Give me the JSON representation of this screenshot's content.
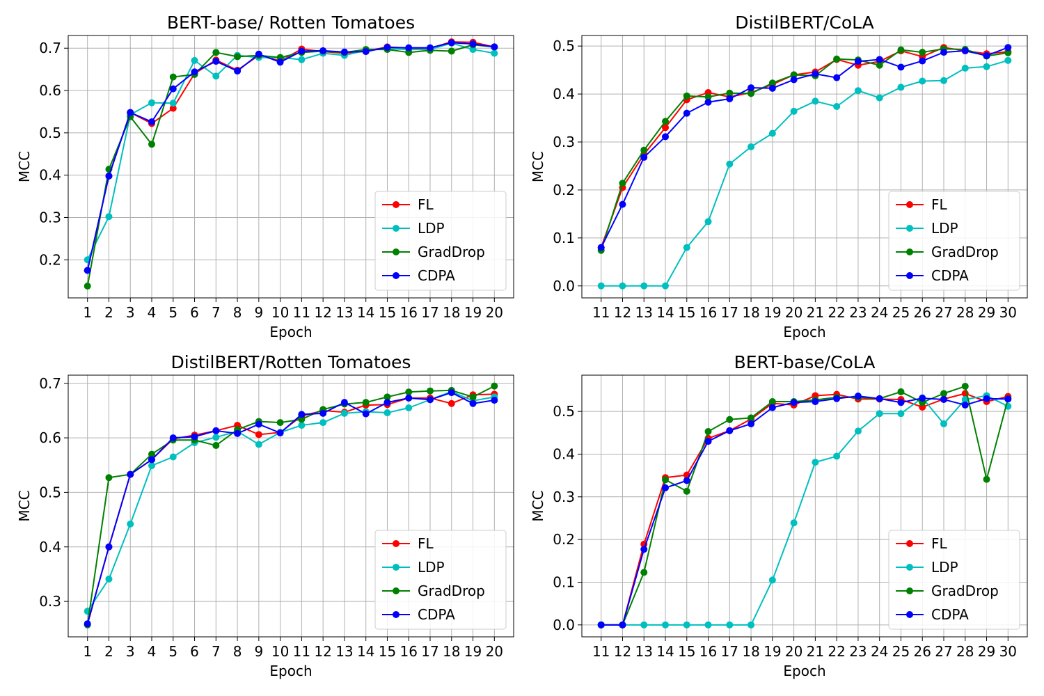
{
  "chart_data": [
    {
      "type": "line",
      "title": "BERT-base/ Rotten Tomatoes",
      "xlabel": "Epoch",
      "ylabel": "MCC",
      "x": [
        1,
        2,
        3,
        4,
        5,
        6,
        7,
        8,
        9,
        10,
        11,
        12,
        13,
        14,
        15,
        16,
        17,
        18,
        19,
        20
      ],
      "xlim": [
        0.1,
        20.9
      ],
      "ylim": [
        0.11,
        0.73
      ],
      "yticks": [
        0.2,
        0.3,
        0.4,
        0.5,
        0.6,
        0.7
      ],
      "ytick_labels": [
        "0.2",
        "0.3",
        "0.4",
        "0.5",
        "0.6",
        "0.7"
      ],
      "grid": true,
      "legend": "lower-right",
      "series": [
        {
          "name": "FL",
          "color": "#ff0000",
          "values": [
            0.175,
            0.398,
            0.548,
            0.522,
            0.558,
            0.64,
            0.672,
            0.648,
            0.683,
            0.67,
            0.698,
            0.692,
            0.688,
            0.693,
            0.703,
            0.7,
            0.7,
            0.715,
            0.714,
            0.703
          ]
        },
        {
          "name": "LDP",
          "color": "#00bfbf",
          "values": [
            0.2,
            0.302,
            0.543,
            0.571,
            0.57,
            0.671,
            0.634,
            0.683,
            0.678,
            0.678,
            0.673,
            0.688,
            0.683,
            0.695,
            0.699,
            0.697,
            0.697,
            0.712,
            0.697,
            0.688
          ]
        },
        {
          "name": "GradDrop",
          "color": "#008000",
          "values": [
            0.138,
            0.414,
            0.538,
            0.473,
            0.632,
            0.638,
            0.69,
            0.68,
            0.683,
            0.678,
            0.69,
            0.693,
            0.69,
            0.697,
            0.697,
            0.69,
            0.695,
            0.693,
            0.708,
            0.703
          ]
        },
        {
          "name": "CDPA",
          "color": "#0000ff",
          "values": [
            0.175,
            0.398,
            0.548,
            0.526,
            0.604,
            0.644,
            0.669,
            0.646,
            0.686,
            0.667,
            0.693,
            0.694,
            0.691,
            0.692,
            0.702,
            0.701,
            0.701,
            0.713,
            0.71,
            0.703
          ]
        }
      ]
    },
    {
      "type": "line",
      "title": "DistilBERT/CoLA",
      "xlabel": "Epoch",
      "ylabel": "MCC",
      "x": [
        11,
        12,
        13,
        14,
        15,
        16,
        17,
        18,
        19,
        20,
        21,
        22,
        23,
        24,
        25,
        26,
        27,
        28,
        29,
        30
      ],
      "xlim": [
        10.1,
        30.9
      ],
      "ylim": [
        -0.025,
        0.522
      ],
      "yticks": [
        0.0,
        0.1,
        0.2,
        0.3,
        0.4,
        0.5
      ],
      "ytick_labels": [
        "0.0",
        "0.1",
        "0.2",
        "0.3",
        "0.4",
        "0.5"
      ],
      "grid": true,
      "legend": "lower-right",
      "series": [
        {
          "name": "FL",
          "color": "#ff0000",
          "values": [
            0.08,
            0.205,
            0.274,
            0.33,
            0.388,
            0.403,
            0.394,
            0.403,
            0.42,
            0.44,
            0.446,
            0.472,
            0.46,
            0.468,
            0.49,
            0.478,
            0.497,
            0.49,
            0.484,
            0.488
          ]
        },
        {
          "name": "LDP",
          "color": "#00bfbf",
          "values": [
            0.0,
            0.0,
            0.0,
            0.0,
            0.08,
            0.134,
            0.254,
            0.29,
            0.318,
            0.364,
            0.385,
            0.374,
            0.407,
            0.392,
            0.414,
            0.427,
            0.428,
            0.454,
            0.457,
            0.47
          ]
        },
        {
          "name": "GradDrop",
          "color": "#008000",
          "values": [
            0.074,
            0.214,
            0.283,
            0.343,
            0.396,
            0.394,
            0.402,
            0.401,
            0.423,
            0.44,
            0.438,
            0.473,
            0.471,
            0.46,
            0.492,
            0.487,
            0.494,
            0.493,
            0.479,
            0.486
          ]
        },
        {
          "name": "CDPA",
          "color": "#0000ff",
          "values": [
            0.08,
            0.17,
            0.268,
            0.311,
            0.36,
            0.383,
            0.39,
            0.413,
            0.412,
            0.43,
            0.442,
            0.434,
            0.468,
            0.472,
            0.456,
            0.469,
            0.487,
            0.49,
            0.48,
            0.497
          ]
        }
      ]
    },
    {
      "type": "line",
      "title": "DistilBERT/Rotten Tomatoes",
      "xlabel": "Epoch",
      "ylabel": "MCC",
      "x": [
        1,
        2,
        3,
        4,
        5,
        6,
        7,
        8,
        9,
        10,
        11,
        12,
        13,
        14,
        15,
        16,
        17,
        18,
        19,
        20
      ],
      "xlim": [
        0.1,
        20.9
      ],
      "ylim": [
        0.235,
        0.715
      ],
      "yticks": [
        0.3,
        0.4,
        0.5,
        0.6,
        0.7
      ],
      "ytick_labels": [
        "0.3",
        "0.4",
        "0.5",
        "0.6",
        "0.7"
      ],
      "grid": true,
      "legend": "lower-right",
      "series": [
        {
          "name": "FL",
          "color": "#ff0000",
          "values": [
            0.258,
            0.4,
            0.533,
            0.56,
            0.598,
            0.605,
            0.613,
            0.623,
            0.606,
            0.61,
            0.64,
            0.65,
            0.647,
            0.66,
            0.661,
            0.673,
            0.673,
            0.663,
            0.679,
            0.68
          ]
        },
        {
          "name": "LDP",
          "color": "#00bfbf",
          "values": [
            0.282,
            0.341,
            0.442,
            0.549,
            0.565,
            0.591,
            0.601,
            0.612,
            0.588,
            0.61,
            0.623,
            0.628,
            0.645,
            0.648,
            0.646,
            0.655,
            0.67,
            0.685,
            0.668,
            0.675
          ]
        },
        {
          "name": "GradDrop",
          "color": "#008000",
          "values": [
            0.257,
            0.527,
            0.533,
            0.57,
            0.596,
            0.596,
            0.586,
            0.615,
            0.63,
            0.628,
            0.634,
            0.652,
            0.662,
            0.665,
            0.675,
            0.684,
            0.686,
            0.687,
            0.675,
            0.695
          ]
        },
        {
          "name": "CDPA",
          "color": "#0000ff",
          "values": [
            0.259,
            0.4,
            0.533,
            0.56,
            0.6,
            0.602,
            0.613,
            0.608,
            0.625,
            0.609,
            0.643,
            0.645,
            0.665,
            0.644,
            0.665,
            0.673,
            0.67,
            0.683,
            0.663,
            0.669
          ]
        }
      ]
    },
    {
      "type": "line",
      "title": "BERT-base/CoLA",
      "xlabel": "Epoch",
      "ylabel": "MCC",
      "x": [
        11,
        12,
        13,
        14,
        15,
        16,
        17,
        18,
        19,
        20,
        21,
        22,
        23,
        24,
        25,
        26,
        27,
        28,
        29,
        30
      ],
      "xlim": [
        10.1,
        30.9
      ],
      "ylim": [
        -0.028,
        0.585
      ],
      "yticks": [
        0.0,
        0.1,
        0.2,
        0.3,
        0.4,
        0.5
      ],
      "ytick_labels": [
        "0.0",
        "0.1",
        "0.2",
        "0.3",
        "0.4",
        "0.5"
      ],
      "grid": true,
      "legend": "lower-right",
      "series": [
        {
          "name": "FL",
          "color": "#ff0000",
          "values": [
            0.0,
            0.0,
            0.189,
            0.345,
            0.351,
            0.437,
            0.455,
            0.482,
            0.519,
            0.515,
            0.537,
            0.54,
            0.529,
            0.529,
            0.528,
            0.51,
            0.529,
            0.542,
            0.523,
            0.535
          ]
        },
        {
          "name": "LDP",
          "color": "#00bfbf",
          "values": [
            0.0,
            0.0,
            0.0,
            0.0,
            0.0,
            0.0,
            0.0,
            0.0,
            0.105,
            0.239,
            0.381,
            0.395,
            0.454,
            0.495,
            0.495,
            0.532,
            0.471,
            0.528,
            0.537,
            0.512
          ]
        },
        {
          "name": "GradDrop",
          "color": "#008000",
          "values": [
            0.0,
            0.0,
            0.123,
            0.34,
            0.313,
            0.453,
            0.481,
            0.485,
            0.523,
            0.523,
            0.527,
            0.533,
            0.533,
            0.53,
            0.546,
            0.521,
            0.542,
            0.559,
            0.341,
            0.53
          ]
        },
        {
          "name": "CDPA",
          "color": "#0000ff",
          "values": [
            0.0,
            0.0,
            0.177,
            0.321,
            0.338,
            0.43,
            0.455,
            0.471,
            0.509,
            0.521,
            0.523,
            0.53,
            0.536,
            0.53,
            0.521,
            0.531,
            0.528,
            0.515,
            0.53,
            0.529
          ]
        }
      ]
    }
  ]
}
